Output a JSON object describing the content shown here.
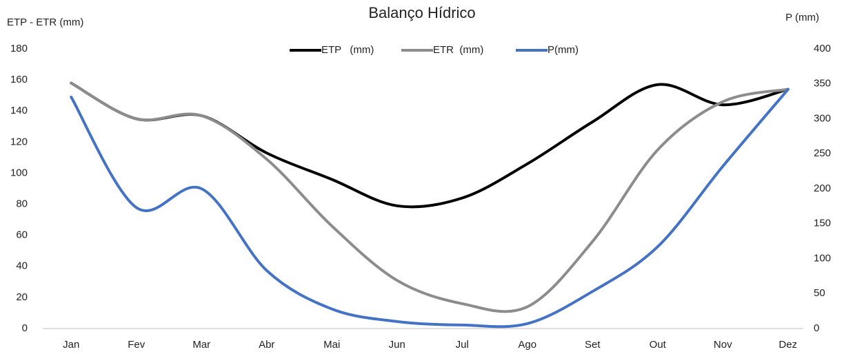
{
  "chart_data": {
    "type": "line",
    "title": "Balanço Hídrico",
    "y_label": "ETP - ETR (mm)",
    "y2_label": "P (mm)",
    "categories": [
      "Jan",
      "Fev",
      "Mar",
      "Abr",
      "Mai",
      "Jun",
      "Jul",
      "Ago",
      "Set",
      "Out",
      "Nov",
      "Dez"
    ],
    "series": [
      {
        "name": "ETP   (mm)",
        "color": "#000000",
        "values": [
          158,
          135,
          137,
          113,
          96,
          79,
          84,
          106,
          133,
          157,
          144,
          154
        ]
      },
      {
        "name": "ETR  (mm)",
        "color": "#8c8c8c",
        "values": [
          158,
          135,
          137,
          109,
          66,
          31,
          16,
          14,
          56,
          115,
          146,
          154
        ]
      },
      {
        "name": "P(mm)",
        "color": "#4472c4",
        "axis": "y2",
        "values": [
          331,
          173,
          200,
          83,
          28,
          10,
          5,
          7,
          53,
          117,
          232,
          342
        ]
      }
    ],
    "ylim": [
      0,
      180
    ],
    "yticks": [
      0,
      20,
      40,
      60,
      80,
      100,
      120,
      140,
      160,
      180
    ],
    "y2lim": [
      0,
      400
    ],
    "y2ticks": [
      0,
      50,
      100,
      150,
      200,
      250,
      300,
      350,
      400
    ],
    "legend": "top",
    "smooth": true
  }
}
